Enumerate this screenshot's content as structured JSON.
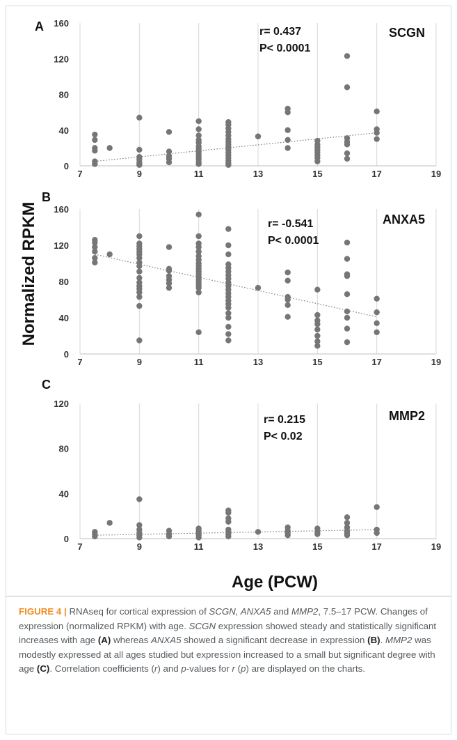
{
  "chart_data": [
    {
      "panel": "A",
      "type": "scatter",
      "gene": "SCGN",
      "stat_r": "r= 0.437",
      "stat_p": "P< 0.0001",
      "xlim": [
        7,
        19
      ],
      "ylim": [
        0,
        160
      ],
      "xticks": [
        "7",
        "9",
        "11",
        "13",
        "15",
        "17",
        "19"
      ],
      "yticks": [
        "0",
        "40",
        "80",
        "120",
        "160"
      ],
      "grid": "vertical",
      "trendline": {
        "x": [
          7.5,
          17
        ],
        "y": [
          5,
          37
        ]
      },
      "points": [
        [
          7.5,
          35
        ],
        [
          7.5,
          29
        ],
        [
          7.5,
          20
        ],
        [
          7.5,
          17
        ],
        [
          7.5,
          5
        ],
        [
          7.5,
          2
        ],
        [
          8,
          20
        ],
        [
          9,
          54
        ],
        [
          9,
          18
        ],
        [
          9,
          10
        ],
        [
          9,
          7
        ],
        [
          9,
          4
        ],
        [
          9,
          2
        ],
        [
          9,
          1
        ],
        [
          10,
          38
        ],
        [
          10,
          16
        ],
        [
          10,
          11
        ],
        [
          10,
          8
        ],
        [
          10,
          4
        ],
        [
          11,
          50
        ],
        [
          11,
          41
        ],
        [
          11,
          34
        ],
        [
          11,
          29
        ],
        [
          11,
          26
        ],
        [
          11,
          22
        ],
        [
          11,
          19
        ],
        [
          11,
          16
        ],
        [
          11,
          13
        ],
        [
          11,
          10
        ],
        [
          11,
          7
        ],
        [
          11,
          4
        ],
        [
          11,
          2
        ],
        [
          12,
          49
        ],
        [
          12,
          46
        ],
        [
          12,
          42
        ],
        [
          12,
          38
        ],
        [
          12,
          34
        ],
        [
          12,
          30
        ],
        [
          12,
          27
        ],
        [
          12,
          24
        ],
        [
          12,
          21
        ],
        [
          12,
          18
        ],
        [
          12,
          15
        ],
        [
          12,
          12
        ],
        [
          12,
          9
        ],
        [
          12,
          6
        ],
        [
          12,
          3
        ],
        [
          12,
          1
        ],
        [
          13,
          33
        ],
        [
          14,
          64
        ],
        [
          14,
          60
        ],
        [
          14,
          40
        ],
        [
          14,
          29
        ],
        [
          14,
          20
        ],
        [
          15,
          28
        ],
        [
          15,
          24
        ],
        [
          15,
          21
        ],
        [
          15,
          18
        ],
        [
          15,
          15
        ],
        [
          15,
          12
        ],
        [
          15,
          9
        ],
        [
          15,
          5
        ],
        [
          16,
          123
        ],
        [
          16,
          88
        ],
        [
          16,
          31
        ],
        [
          16,
          27
        ],
        [
          16,
          24
        ],
        [
          16,
          14
        ],
        [
          16,
          8
        ],
        [
          17,
          61
        ],
        [
          17,
          41
        ],
        [
          17,
          37
        ],
        [
          17,
          30
        ]
      ]
    },
    {
      "panel": "B",
      "type": "scatter",
      "gene": "ANXA5",
      "stat_r": "r= -0.541",
      "stat_p": "P< 0.0001",
      "xlim": [
        7,
        19
      ],
      "ylim": [
        0,
        160
      ],
      "xticks": [
        "7",
        "9",
        "11",
        "13",
        "15",
        "17",
        "19"
      ],
      "yticks": [
        "0",
        "40",
        "80",
        "120",
        "160"
      ],
      "grid": "vertical",
      "trendline": {
        "x": [
          7.5,
          17
        ],
        "y": [
          110,
          41
        ]
      },
      "points": [
        [
          7.5,
          126
        ],
        [
          7.5,
          123
        ],
        [
          7.5,
          118
        ],
        [
          7.5,
          113
        ],
        [
          7.5,
          106
        ],
        [
          7.5,
          101
        ],
        [
          8,
          110
        ],
        [
          9,
          130
        ],
        [
          9,
          122
        ],
        [
          9,
          119
        ],
        [
          9,
          116
        ],
        [
          9,
          113
        ],
        [
          9,
          110
        ],
        [
          9,
          106
        ],
        [
          9,
          101
        ],
        [
          9,
          97
        ],
        [
          9,
          91
        ],
        [
          9,
          84
        ],
        [
          9,
          79
        ],
        [
          9,
          75
        ],
        [
          9,
          72
        ],
        [
          9,
          68
        ],
        [
          9,
          63
        ],
        [
          9,
          53
        ],
        [
          9,
          15
        ],
        [
          10,
          118
        ],
        [
          10,
          94
        ],
        [
          10,
          92
        ],
        [
          10,
          86
        ],
        [
          10,
          82
        ],
        [
          10,
          78
        ],
        [
          10,
          73
        ],
        [
          11,
          154
        ],
        [
          11,
          130
        ],
        [
          11,
          122
        ],
        [
          11,
          118
        ],
        [
          11,
          113
        ],
        [
          11,
          108
        ],
        [
          11,
          104
        ],
        [
          11,
          100
        ],
        [
          11,
          97
        ],
        [
          11,
          94
        ],
        [
          11,
          91
        ],
        [
          11,
          88
        ],
        [
          11,
          85
        ],
        [
          11,
          82
        ],
        [
          11,
          79
        ],
        [
          11,
          76
        ],
        [
          11,
          73
        ],
        [
          11,
          68
        ],
        [
          11,
          24
        ],
        [
          12,
          138
        ],
        [
          12,
          120
        ],
        [
          12,
          110
        ],
        [
          12,
          99
        ],
        [
          12,
          95
        ],
        [
          12,
          91
        ],
        [
          12,
          87
        ],
        [
          12,
          83
        ],
        [
          12,
          79
        ],
        [
          12,
          75
        ],
        [
          12,
          71
        ],
        [
          12,
          67
        ],
        [
          12,
          63
        ],
        [
          12,
          59
        ],
        [
          12,
          55
        ],
        [
          12,
          51
        ],
        [
          12,
          45
        ],
        [
          12,
          40
        ],
        [
          12,
          30
        ],
        [
          12,
          22
        ],
        [
          12,
          15
        ],
        [
          13,
          73
        ],
        [
          14,
          90
        ],
        [
          14,
          81
        ],
        [
          14,
          63
        ],
        [
          14,
          60
        ],
        [
          14,
          54
        ],
        [
          14,
          41
        ],
        [
          15,
          71
        ],
        [
          15,
          43
        ],
        [
          15,
          37
        ],
        [
          15,
          33
        ],
        [
          15,
          27
        ],
        [
          15,
          20
        ],
        [
          15,
          14
        ],
        [
          15,
          9
        ],
        [
          16,
          123
        ],
        [
          16,
          105
        ],
        [
          16,
          88
        ],
        [
          16,
          86
        ],
        [
          16,
          66
        ],
        [
          16,
          47
        ],
        [
          16,
          40
        ],
        [
          16,
          28
        ],
        [
          16,
          13
        ],
        [
          17,
          61
        ],
        [
          17,
          46
        ],
        [
          17,
          34
        ],
        [
          17,
          24
        ]
      ]
    },
    {
      "panel": "C",
      "type": "scatter",
      "gene": "MMP2",
      "stat_r": "r= 0.215",
      "stat_p": "P< 0.02",
      "xlim": [
        7,
        19
      ],
      "ylim": [
        0,
        120
      ],
      "xticks": [
        "7",
        "9",
        "11",
        "13",
        "15",
        "17",
        "19"
      ],
      "yticks": [
        "0",
        "40",
        "80",
        "120"
      ],
      "grid": "vertical",
      "trendline": {
        "x": [
          7.5,
          17
        ],
        "y": [
          3,
          8
        ]
      },
      "points": [
        [
          7.5,
          6
        ],
        [
          7.5,
          4
        ],
        [
          7.5,
          2
        ],
        [
          8,
          14
        ],
        [
          9,
          35
        ],
        [
          9,
          12
        ],
        [
          9,
          8
        ],
        [
          9,
          5
        ],
        [
          9,
          3
        ],
        [
          9,
          1
        ],
        [
          10,
          7
        ],
        [
          10,
          4
        ],
        [
          10,
          2
        ],
        [
          11,
          9
        ],
        [
          11,
          7
        ],
        [
          11,
          5
        ],
        [
          11,
          3
        ],
        [
          11,
          1
        ],
        [
          12,
          25
        ],
        [
          12,
          23
        ],
        [
          12,
          18
        ],
        [
          12,
          15
        ],
        [
          12,
          8
        ],
        [
          12,
          6
        ],
        [
          12,
          4
        ],
        [
          12,
          2
        ],
        [
          13,
          6
        ],
        [
          14,
          10
        ],
        [
          14,
          7
        ],
        [
          14,
          5
        ],
        [
          14,
          3
        ],
        [
          15,
          9
        ],
        [
          15,
          6
        ],
        [
          15,
          4
        ],
        [
          16,
          19
        ],
        [
          16,
          14
        ],
        [
          16,
          10
        ],
        [
          16,
          7
        ],
        [
          16,
          5
        ],
        [
          16,
          3
        ],
        [
          17,
          28
        ],
        [
          17,
          8
        ],
        [
          17,
          5
        ]
      ]
    }
  ],
  "shared_ylabel": "Normalized RPKM",
  "shared_xlabel": "Age (PCW)",
  "caption": {
    "lead": "FIGURE 4 |",
    "s1": " RNAseq for cortical expression of ",
    "s1i": "SCGN, ANXA5",
    "s2": " and ",
    "s2i": "MMP2",
    "s3": ", 7.5–17 PCW. Changes of expression (normalized RPKM) with age. ",
    "s3i": "SCGN",
    "s4": " expression showed steady and statistically significant increases with age ",
    "s4b": "(A)",
    "s5": " whereas ",
    "s5i": "ANXA5",
    "s6": " showed a significant decrease in expression ",
    "s6b": "(B)",
    "s7": ". ",
    "s7i": "MMP2",
    "s8": " was modestly expressed at all ages studied but expression increased to a small but significant degree with age ",
    "s8b": "(C)",
    "s9": ". Correlation coefficients (",
    "s9i": "r",
    "s10": ") and ",
    "s10i": "p",
    "s11": "-values for ",
    "s11i": "r",
    "s12": " (",
    "s12i": "p",
    "s13": ") are displayed on the charts."
  }
}
